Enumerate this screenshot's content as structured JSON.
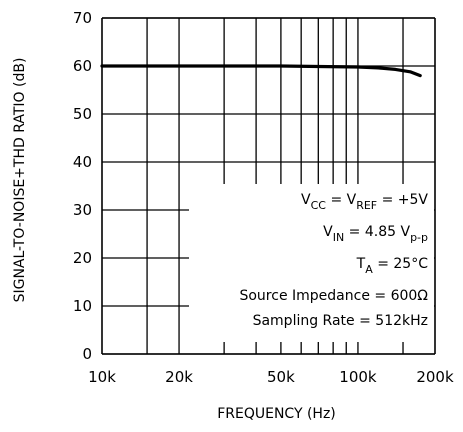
{
  "chart_data": {
    "type": "line",
    "title": "",
    "xlabel": "FREQUENCY (Hz)",
    "ylabel": "SIGNAL-TO-NOISE+THD RATIO (dB)",
    "x_scale": "log",
    "xlim": [
      10000,
      200000
    ],
    "ylim": [
      0,
      70
    ],
    "y_ticks": [
      0,
      10,
      20,
      30,
      40,
      50,
      60,
      70
    ],
    "x_tick_labels": [
      {
        "value": 10000,
        "label": "10k"
      },
      {
        "value": 20000,
        "label": "20k"
      },
      {
        "value": 50000,
        "label": "50k"
      },
      {
        "value": 100000,
        "label": "100k"
      },
      {
        "value": 200000,
        "label": "200k"
      }
    ],
    "x_gridlines": [
      15000,
      20000,
      30000,
      40000,
      50000,
      60000,
      70000,
      80000,
      90000,
      100000,
      150000
    ],
    "grid": true,
    "series": [
      {
        "x": [
          10000,
          15000,
          20000,
          30000,
          50000,
          70000,
          100000,
          120000,
          140000,
          160000,
          175000
        ],
        "y": [
          60.0,
          60.0,
          60.0,
          60.0,
          60.0,
          59.9,
          59.8,
          59.6,
          59.3,
          58.8,
          58.0
        ]
      }
    ],
    "annotations": [
      {
        "base": "V",
        "sub": "CC",
        "mid": " = V",
        "sub2": "REF",
        "tail": " = +5V"
      },
      {
        "base": "V",
        "sub": "IN",
        "mid": " = 4.85 V",
        "sub2": "p-p",
        "tail": ""
      },
      {
        "base": "T",
        "sub": "A",
        "mid": " = 25°C",
        "sub2": "",
        "tail": ""
      },
      {
        "base": "Source Impedance = 600Ω",
        "sub": "",
        "mid": "",
        "sub2": "",
        "tail": ""
      },
      {
        "base": "Sampling Rate = 512kHz",
        "sub": "",
        "mid": "",
        "sub2": "",
        "tail": ""
      }
    ]
  }
}
